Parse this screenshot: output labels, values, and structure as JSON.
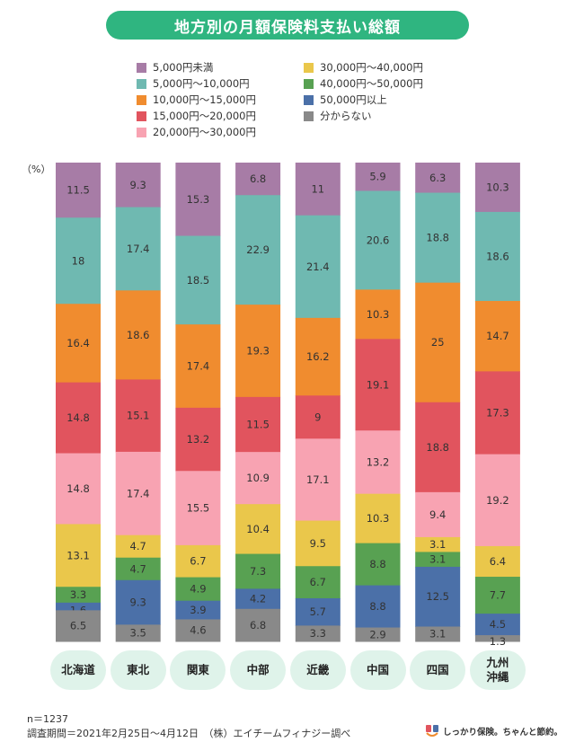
{
  "title": "地方別の月額保険料支払い総額",
  "y_unit": "（%）",
  "footer": {
    "n": "n＝1237",
    "period": "調査期間＝2021年2月25日～4月12日　（株）エイチームフィナジー調べ"
  },
  "brand": {
    "text": "しっかり保険。ちゃんと節約。"
  },
  "colors": {
    "title_bg": "#2fb580",
    "region_pill_bg": "#dff3ea"
  },
  "chart_data": {
    "type": "bar",
    "stacked": true,
    "percent": true,
    "categories": [
      "北海道",
      "東北",
      "関東",
      "中部",
      "近畿",
      "中国",
      "四国",
      "九州\n沖縄"
    ],
    "series": [
      {
        "name": "5,000円未満",
        "color": "#a77ca6",
        "values": [
          11.5,
          9.3,
          15.3,
          6.8,
          11,
          5.9,
          6.3,
          10.3
        ]
      },
      {
        "name": "5,000円～10,000円",
        "color": "#6fb9b1",
        "values": [
          18,
          17.4,
          18.5,
          22.9,
          21.4,
          20.6,
          18.8,
          18.6
        ]
      },
      {
        "name": "10,000円～15,000円",
        "color": "#f08c2f",
        "values": [
          16.4,
          18.6,
          17.4,
          19.3,
          16.2,
          10.3,
          25,
          14.7
        ]
      },
      {
        "name": "15,000円～20,000円",
        "color": "#e1545e",
        "values": [
          14.8,
          15.1,
          13.2,
          11.5,
          9,
          19.1,
          18.8,
          17.3
        ]
      },
      {
        "name": "20,000円～30,000円",
        "color": "#f8a3b2",
        "values": [
          14.8,
          17.4,
          15.5,
          10.9,
          17.1,
          13.2,
          9.4,
          19.2
        ]
      },
      {
        "name": "30,000円～40,000円",
        "color": "#eac74b",
        "values": [
          13.1,
          4.7,
          6.7,
          10.4,
          9.5,
          10.3,
          3.1,
          6.4
        ]
      },
      {
        "name": "40,000円～50,000円",
        "color": "#58a152",
        "values": [
          3.3,
          4.7,
          4.9,
          7.3,
          6.7,
          8.8,
          3.1,
          7.7
        ]
      },
      {
        "name": "50,000円以上",
        "color": "#4b70a8",
        "values": [
          1.6,
          9.3,
          3.9,
          4.2,
          5.7,
          8.8,
          12.5,
          4.5
        ]
      },
      {
        "name": "分からない",
        "color": "#898989",
        "values": [
          6.5,
          3.5,
          4.6,
          6.8,
          3.3,
          2.9,
          3.1,
          1.3
        ]
      }
    ],
    "ylim": [
      0,
      100
    ],
    "legend_position": "top"
  }
}
